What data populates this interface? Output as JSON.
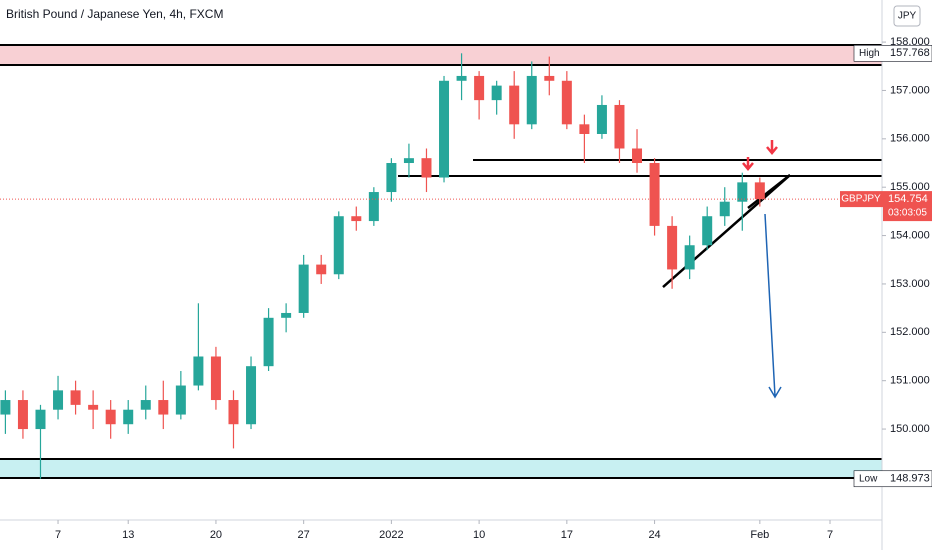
{
  "chart_data": {
    "type": "candlestick",
    "title": "British Pound / Japanese Yen, 4h, FXCM",
    "currency": "JPY",
    "categories": [
      null,
      null,
      null,
      "7",
      null,
      null,
      null,
      "13",
      null,
      null,
      null,
      null,
      "20",
      null,
      null,
      null,
      null,
      "27",
      null,
      null,
      null,
      null,
      "2022",
      null,
      null,
      null,
      null,
      "10",
      null,
      null,
      null,
      null,
      "17",
      null,
      null,
      null,
      null,
      "24",
      null,
      null,
      null,
      null,
      null,
      "Feb",
      null,
      null,
      null,
      "7",
      null,
      null
    ],
    "series": [
      {
        "name": "GBPJPY",
        "up_color": "#26a69a",
        "down_color": "#ef5350",
        "open": [
          150.3,
          150.6,
          150.0,
          150.4,
          150.8,
          150.5,
          150.4,
          150.1,
          150.4,
          150.6,
          150.3,
          150.9,
          151.5,
          150.6,
          150.1,
          151.3,
          152.3,
          152.4,
          153.4,
          153.2,
          154.4,
          154.3,
          154.9,
          155.5,
          155.6,
          155.2,
          157.2,
          157.3,
          156.8,
          157.1,
          156.3,
          157.3,
          157.2,
          156.3,
          156.1,
          156.7,
          155.8,
          155.5,
          154.2,
          153.3,
          153.8,
          154.4,
          154.7,
          155.1,
          null,
          null,
          null,
          null,
          null,
          null
        ],
        "high": [
          150.8,
          150.8,
          150.5,
          151.1,
          151.0,
          150.8,
          150.6,
          150.6,
          150.9,
          151.0,
          151.2,
          152.6,
          151.7,
          150.8,
          151.5,
          152.5,
          152.6,
          153.6,
          153.6,
          154.5,
          154.6,
          155.0,
          155.6,
          155.9,
          155.8,
          157.3,
          157.768,
          157.4,
          157.2,
          157.4,
          157.6,
          157.7,
          157.4,
          156.5,
          156.9,
          156.8,
          156.2,
          155.6,
          154.4,
          154.0,
          154.6,
          155.0,
          155.3,
          155.2,
          null,
          null,
          null,
          null,
          null,
          null
        ],
        "low": [
          149.9,
          149.8,
          148.973,
          150.2,
          150.3,
          150.0,
          149.8,
          149.9,
          150.2,
          150.0,
          150.2,
          150.8,
          150.4,
          149.6,
          150.0,
          151.2,
          152.0,
          152.3,
          153.0,
          153.1,
          154.1,
          154.2,
          154.7,
          155.2,
          154.9,
          155.1,
          156.8,
          156.4,
          156.5,
          156.0,
          156.2,
          156.9,
          156.2,
          155.5,
          156.0,
          155.5,
          155.3,
          154.0,
          152.9,
          153.1,
          153.7,
          154.2,
          154.1,
          154.6,
          null,
          null,
          null,
          null,
          null,
          null
        ],
        "close": [
          150.6,
          150.0,
          150.4,
          150.8,
          150.5,
          150.4,
          150.1,
          150.4,
          150.6,
          150.3,
          150.9,
          151.5,
          150.6,
          150.1,
          151.3,
          152.3,
          152.4,
          153.4,
          153.2,
          154.4,
          154.3,
          154.9,
          155.5,
          155.6,
          155.2,
          157.2,
          157.3,
          156.8,
          157.1,
          156.3,
          157.3,
          157.2,
          156.3,
          156.1,
          156.7,
          155.8,
          155.5,
          154.2,
          153.3,
          153.8,
          154.4,
          154.7,
          155.1,
          154.754,
          null,
          null,
          null,
          null,
          null,
          null
        ]
      }
    ],
    "ylim": [
      148.12,
      158.87
    ],
    "yticks": [
      {
        "value": 150,
        "label": "150.000"
      },
      {
        "value": 151,
        "label": "151.000"
      },
      {
        "value": 152,
        "label": "152.000"
      },
      {
        "value": 153,
        "label": "153.000"
      },
      {
        "value": 154,
        "label": "154.000"
      },
      {
        "value": 155,
        "label": "155.000"
      },
      {
        "value": 156,
        "label": "156.000"
      },
      {
        "value": 157,
        "label": "157.000"
      },
      {
        "value": 158,
        "label": "158.000"
      }
    ],
    "high": {
      "label": "High",
      "value": 157.768
    },
    "low": {
      "label": "Low",
      "value": 148.973
    },
    "last": {
      "symbol": "GBPJPY",
      "value": 154.754,
      "countdown": "03:03:05",
      "color": "#ef5350"
    }
  }
}
